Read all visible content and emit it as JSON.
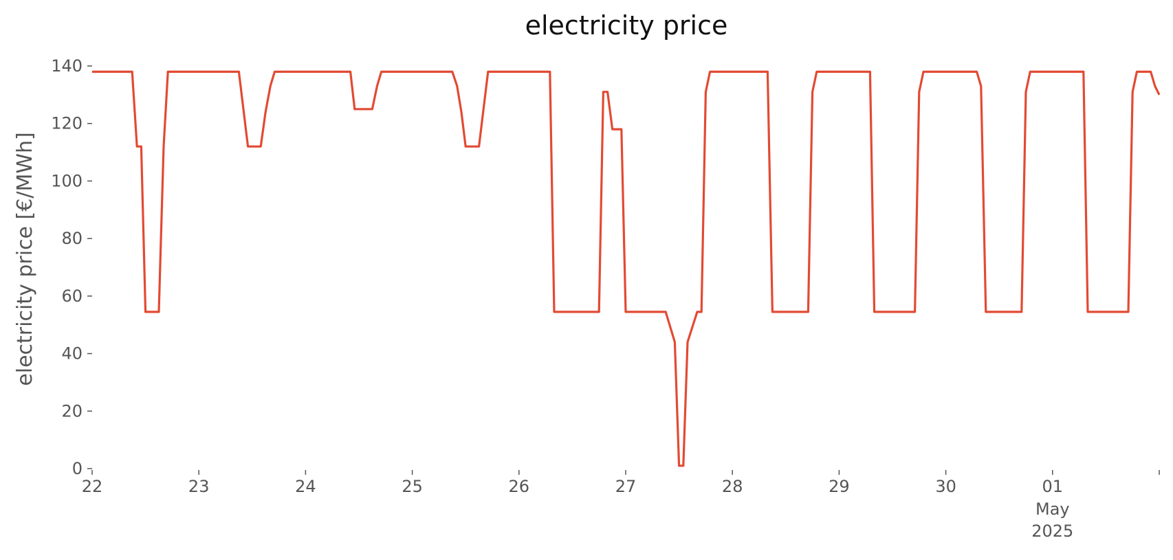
{
  "chart_data": {
    "type": "line",
    "title": "electricity price",
    "xlabel": "",
    "ylabel": "electricity price [€/MWh]",
    "ylim": [
      0,
      140
    ],
    "xlim": [
      0,
      10
    ],
    "grid": false,
    "legend": "none",
    "color": "#E24A33",
    "x_unit": "days since Apr 22 2025",
    "x_ticks": [
      {
        "value": 0,
        "label": "22"
      },
      {
        "value": 1,
        "label": "23"
      },
      {
        "value": 2,
        "label": "24"
      },
      {
        "value": 3,
        "label": "25"
      },
      {
        "value": 4,
        "label": "26"
      },
      {
        "value": 5,
        "label": "27"
      },
      {
        "value": 6,
        "label": "28"
      },
      {
        "value": 7,
        "label": "29"
      },
      {
        "value": 8,
        "label": "30"
      },
      {
        "value": 9,
        "label": "01",
        "sublabel": "May",
        "sublabel2": "2025"
      },
      {
        "value": 10,
        "label": ""
      }
    ],
    "y_ticks": [
      0,
      20,
      40,
      60,
      80,
      100,
      120,
      140
    ],
    "series": [
      {
        "name": "",
        "points": [
          [
            0.0,
            138
          ],
          [
            0.375,
            138
          ],
          [
            0.42,
            112
          ],
          [
            0.46,
            112
          ],
          [
            0.5,
            54.5
          ],
          [
            0.625,
            54.5
          ],
          [
            0.67,
            112
          ],
          [
            0.71,
            138
          ],
          [
            1.0,
            138
          ],
          [
            1.375,
            138
          ],
          [
            1.46,
            112
          ],
          [
            1.58,
            112
          ],
          [
            1.625,
            124
          ],
          [
            1.67,
            133
          ],
          [
            1.71,
            138
          ],
          [
            2.0,
            138
          ],
          [
            2.42,
            138
          ],
          [
            2.46,
            125
          ],
          [
            2.625,
            125
          ],
          [
            2.67,
            133
          ],
          [
            2.71,
            138
          ],
          [
            3.0,
            138
          ],
          [
            3.375,
            138
          ],
          [
            3.42,
            133
          ],
          [
            3.46,
            124
          ],
          [
            3.5,
            112
          ],
          [
            3.625,
            112
          ],
          [
            3.71,
            138
          ],
          [
            4.0,
            138
          ],
          [
            4.29,
            138
          ],
          [
            4.33,
            54.5
          ],
          [
            4.75,
            54.5
          ],
          [
            4.79,
            131
          ],
          [
            4.83,
            131
          ],
          [
            4.875,
            118
          ],
          [
            4.96,
            118
          ],
          [
            5.0,
            54.5
          ],
          [
            5.375,
            54.5
          ],
          [
            5.46,
            44
          ],
          [
            5.5,
            1
          ],
          [
            5.54,
            1
          ],
          [
            5.58,
            44
          ],
          [
            5.67,
            54.5
          ],
          [
            5.71,
            54.5
          ],
          [
            5.75,
            131
          ],
          [
            5.79,
            138
          ],
          [
            6.0,
            138
          ],
          [
            6.33,
            138
          ],
          [
            6.375,
            54.5
          ],
          [
            6.71,
            54.5
          ],
          [
            6.75,
            131
          ],
          [
            6.79,
            138
          ],
          [
            7.0,
            138
          ],
          [
            7.29,
            138
          ],
          [
            7.33,
            54.5
          ],
          [
            7.71,
            54.5
          ],
          [
            7.75,
            131
          ],
          [
            7.79,
            138
          ],
          [
            8.0,
            138
          ],
          [
            8.29,
            138
          ],
          [
            8.33,
            133
          ],
          [
            8.375,
            54.5
          ],
          [
            8.71,
            54.5
          ],
          [
            8.75,
            131
          ],
          [
            8.79,
            138
          ],
          [
            9.0,
            138
          ],
          [
            9.29,
            138
          ],
          [
            9.33,
            54.5
          ],
          [
            9.71,
            54.5
          ],
          [
            9.75,
            131
          ],
          [
            9.79,
            138
          ],
          [
            9.92,
            138
          ],
          [
            9.96,
            133
          ],
          [
            10.0,
            130
          ]
        ]
      }
    ]
  }
}
